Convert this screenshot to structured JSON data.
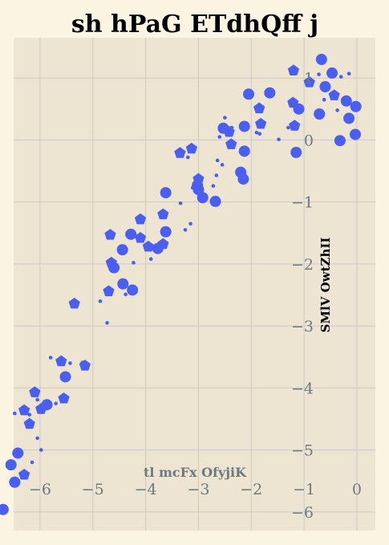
{
  "chart_data": {
    "type": "scatter",
    "title": "sh   hPaG ETdhQff j",
    "xlabel": "tl mcFx OfyjiK",
    "ylabel": "SMlV OwtZhII",
    "xlim": [
      -6.5,
      0.35
    ],
    "ylim": [
      -6.3,
      1.65
    ],
    "x_ticks": [
      -6,
      -5,
      -4,
      -3,
      -2,
      -1,
      0
    ],
    "y_ticks": [
      -6,
      -5,
      -4,
      -3,
      -2,
      -1,
      0,
      1
    ],
    "x_tick_labels": [
      "−6",
      "−5",
      "−4",
      "−3",
      "−2",
      "−1",
      "0"
    ],
    "y_tick_labels": [
      "−6",
      "−5",
      "−4",
      "−3",
      "−2",
      "−1",
      "0",
      "1"
    ],
    "grid": true,
    "colors": {
      "points": "#4a5ff2",
      "plot_bg": "#ede5d1",
      "page_bg": "#fcf4e3",
      "grid": "#cdc8cc",
      "tick_text": "#6b7a82"
    },
    "series": [
      {
        "marker": "circle",
        "points": [
          [
            -0.67,
            1.3
          ],
          [
            -0.47,
            1.08
          ],
          [
            -0.6,
            0.86
          ],
          [
            -0.2,
            0.63
          ],
          [
            -0.02,
            0.54
          ],
          [
            -0.15,
            0.35
          ],
          [
            -0.03,
            0.09
          ],
          [
            -0.32,
            -0.01
          ],
          [
            -0.71,
            0.42
          ],
          [
            -1.1,
            0.5
          ],
          [
            -1.15,
            -0.2
          ],
          [
            -1.65,
            0.76
          ],
          [
            -2.05,
            0.74
          ],
          [
            -2.53,
            0.19
          ],
          [
            -2.13,
            0.22
          ],
          [
            -2.13,
            -0.18
          ],
          [
            -2.2,
            -0.52
          ],
          [
            -2.15,
            -0.63
          ],
          [
            -2.68,
            -0.99
          ],
          [
            -2.92,
            -0.93
          ],
          [
            -3.0,
            -0.8
          ],
          [
            -3.02,
            -0.73
          ],
          [
            -3.62,
            -0.85
          ],
          [
            -3.62,
            -1.48
          ],
          [
            -3.77,
            -1.75
          ],
          [
            -4.28,
            -1.52
          ],
          [
            -4.44,
            -1.77
          ],
          [
            -4.6,
            -2.06
          ],
          [
            -4.43,
            -2.32
          ],
          [
            -4.25,
            -2.42
          ],
          [
            -5.52,
            -3.82
          ],
          [
            -5.87,
            -4.27
          ],
          [
            -6.42,
            -5.05
          ],
          [
            -6.55,
            -5.24
          ],
          [
            -6.48,
            -5.52
          ],
          [
            -6.7,
            -5.96
          ]
        ]
      },
      {
        "marker": "pentagon",
        "points": [
          [
            -0.43,
            0.72
          ],
          [
            -0.9,
            0.93
          ],
          [
            -1.2,
            1.12
          ],
          [
            -1.21,
            0.6
          ],
          [
            -1.18,
            0.23
          ],
          [
            -1.85,
            0.51
          ],
          [
            -1.82,
            0.26
          ],
          [
            -2.42,
            0.13
          ],
          [
            -2.38,
            -0.07
          ],
          [
            -3.13,
            -0.14
          ],
          [
            -3.35,
            -0.21
          ],
          [
            -3.0,
            -0.63
          ],
          [
            -3.67,
            -1.2
          ],
          [
            -4.1,
            -1.28
          ],
          [
            -4.1,
            -1.58
          ],
          [
            -3.95,
            -1.72
          ],
          [
            -3.67,
            -1.68
          ],
          [
            -4.67,
            -1.53
          ],
          [
            -4.65,
            -1.98
          ],
          [
            -4.7,
            -2.44
          ],
          [
            -5.35,
            -2.64
          ],
          [
            -5.6,
            -3.57
          ],
          [
            -5.15,
            -3.64
          ],
          [
            -6.1,
            -4.07
          ],
          [
            -6.3,
            -4.36
          ],
          [
            -6.2,
            -4.58
          ],
          [
            -5.98,
            -4.34
          ],
          [
            -5.55,
            -4.17
          ],
          [
            -6.3,
            -5.4
          ]
        ]
      },
      {
        "marker": "dot",
        "points": [
          [
            -0.88,
            0.98
          ],
          [
            -0.72,
            1.06
          ],
          [
            -0.3,
            1.02
          ],
          [
            -0.15,
            1.07
          ],
          [
            -0.62,
            0.65
          ],
          [
            -0.37,
            0.48
          ],
          [
            -0.67,
            0.37
          ],
          [
            -1.3,
            0.2
          ],
          [
            -1.48,
            0.01
          ],
          [
            -1.84,
            0.1
          ],
          [
            -1.9,
            0.12
          ],
          [
            -2.37,
            0.2
          ],
          [
            -2.5,
            0.36
          ],
          [
            -2.6,
            0.05
          ],
          [
            -2.55,
            -0.4
          ],
          [
            -2.64,
            -0.33
          ],
          [
            -2.72,
            -0.74
          ],
          [
            -2.66,
            -0.57
          ],
          [
            -3.11,
            -0.77
          ],
          [
            -3.2,
            -0.28
          ],
          [
            -3.34,
            -1.02
          ],
          [
            -3.15,
            -1.35
          ],
          [
            -3.25,
            -1.45
          ],
          [
            -3.9,
            -1.92
          ],
          [
            -4.23,
            -1.98
          ],
          [
            -4.38,
            -2.49
          ],
          [
            -4.86,
            -2.6
          ],
          [
            -4.73,
            -2.95
          ],
          [
            -5.8,
            -3.51
          ],
          [
            -5.43,
            -3.6
          ],
          [
            -5.2,
            -3.59
          ],
          [
            -5.7,
            -4.25
          ],
          [
            -6.05,
            -4.19
          ],
          [
            -6.48,
            -4.41
          ],
          [
            -6.2,
            -4.43
          ],
          [
            -6.05,
            -4.81
          ],
          [
            -5.98,
            -5.0
          ],
          [
            -6.15,
            -5.2
          ]
        ]
      }
    ]
  }
}
